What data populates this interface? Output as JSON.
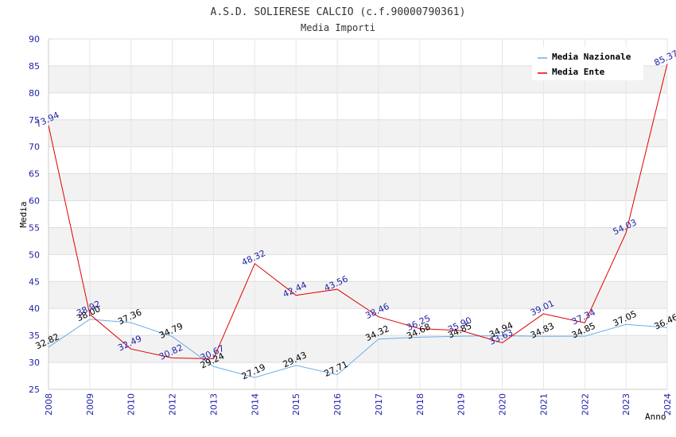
{
  "chart_data": {
    "type": "line",
    "title": "A.S.D. SOLIERESE CALCIO (c.f.90000790361)",
    "subtitle": "Media Importi",
    "xlabel": "Anno",
    "ylabel": "Media",
    "ylim": [
      25,
      90
    ],
    "yticks": [
      "25",
      "30",
      "35",
      "40",
      "45",
      "50",
      "55",
      "60",
      "65",
      "70",
      "75",
      "80",
      "85",
      "90"
    ],
    "categories": [
      "2008",
      "2009",
      "2010",
      "2012",
      "2013",
      "2014",
      "2015",
      "2016",
      "2017",
      "2018",
      "2019",
      "2020",
      "2021",
      "2022",
      "2023",
      "2024"
    ],
    "grid": true,
    "legend_position": "top-right",
    "series": [
      {
        "name": "Media Nazionale",
        "color": "#6aaee8",
        "label_color": "#000000",
        "values": [
          32.82,
          38.0,
          37.36,
          34.79,
          29.24,
          27.19,
          29.43,
          27.71,
          34.32,
          34.68,
          34.85,
          34.94,
          34.83,
          34.85,
          37.05,
          36.46
        ],
        "labels": [
          "32.82",
          "38.00",
          "37.36",
          "34.79",
          "29.24",
          "27.19",
          "29.43",
          "27.71",
          "34.32",
          "34.68",
          "34.85",
          "34.94",
          "34.83",
          "34.85",
          "37.05",
          "36.46"
        ]
      },
      {
        "name": "Media Ente",
        "color": "#e00000",
        "label_color": "#1f1fa8",
        "values": [
          73.94,
          38.92,
          32.49,
          30.82,
          30.67,
          48.32,
          42.44,
          43.56,
          38.46,
          36.25,
          35.9,
          33.63,
          39.01,
          37.34,
          54.03,
          85.37
        ],
        "labels": [
          "73.94",
          "38.92",
          "32.49",
          "30.82",
          "30.67",
          "48.32",
          "42.44",
          "43.56",
          "38.46",
          "36.25",
          "35.90",
          "33.63",
          "39.01",
          "37.34",
          "54.03",
          "85.37"
        ]
      }
    ]
  }
}
